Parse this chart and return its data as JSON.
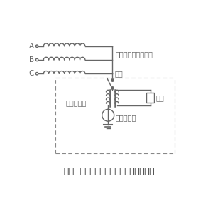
{
  "title": "图四  发电机中性点接地电阻工作原理图",
  "label_A": "A",
  "label_B": "B",
  "label_C": "C",
  "label_gen": "发电机定子三相绕组",
  "label_transformer": "接地变压器",
  "label_knife": "刀闸",
  "label_resistor": "电阻",
  "label_ct": "电流互感器",
  "line_color": "#666666",
  "background": "#ffffff",
  "title_fontsize": 8.5,
  "label_fontsize": 7.5
}
